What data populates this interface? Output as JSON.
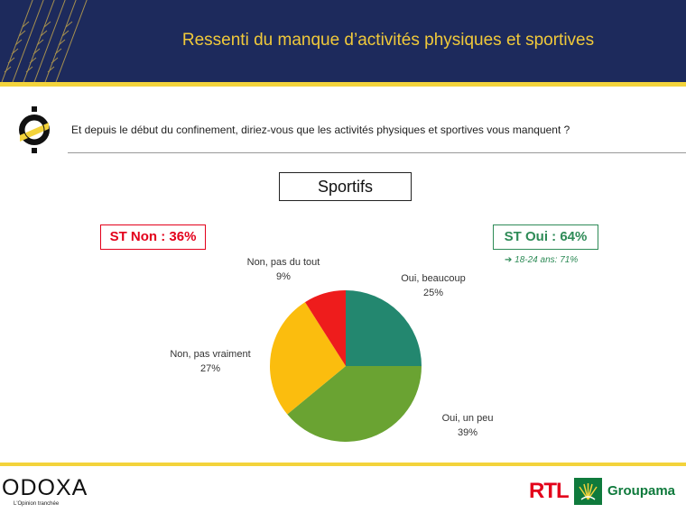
{
  "header": {
    "title": "Ressenti du manque d’activités physiques et sportives"
  },
  "question": "Et depuis le début du confinement, diriez-vous que les activités physiques et sportives vous manquent ?",
  "segment_label": "Sportifs",
  "summary": {
    "st_non": "ST Non : 36%",
    "st_oui": "ST Oui : 64%",
    "st_oui_note": "18-24 ans: 71%"
  },
  "chart_data": {
    "type": "pie",
    "slices": [
      {
        "label": "Oui, beaucoup",
        "value": 25,
        "display": "25%",
        "color": "#23876f"
      },
      {
        "label": "Oui, un peu",
        "value": 39,
        "display": "39%",
        "color": "#6aa332"
      },
      {
        "label": "Non, pas vraiment",
        "value": 27,
        "display": "27%",
        "color": "#fbbd0e"
      },
      {
        "label": "Non, pas du tout",
        "value": 9,
        "display": "9%",
        "color": "#ee1c1c"
      }
    ],
    "start": "12 o'clock",
    "direction": "clockwise"
  },
  "footer": {
    "odoxa_logo": "ODOXA",
    "odoxa_tagline": "L'Opinion tranchée",
    "rtl_logo": "RTL",
    "groupama_logo": "Groupama"
  },
  "colors": {
    "header_bg": "#1d2a5c",
    "accent_yellow": "#f3d33b",
    "title_gold": "#f0c93a",
    "negative_red": "#e3001b",
    "positive_green": "#2e8b57"
  }
}
